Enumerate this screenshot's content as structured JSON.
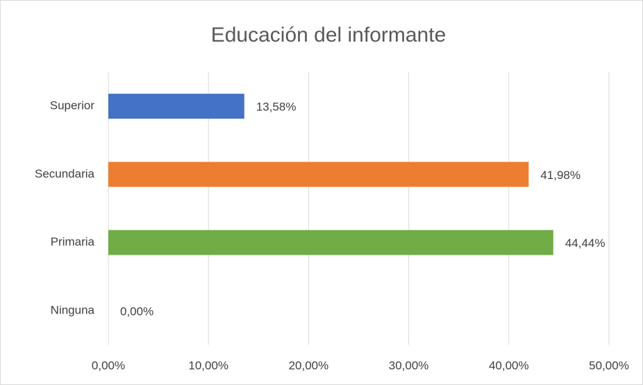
{
  "chart_data": {
    "type": "bar",
    "orientation": "horizontal",
    "title": "Educación del informante",
    "categories": [
      "Superior",
      "Secundaria",
      "Primaria",
      "Ninguna"
    ],
    "values": [
      13.58,
      41.98,
      44.44,
      0
    ],
    "value_labels": [
      "13,58%",
      "41,98%",
      "44,44%",
      "0,00%"
    ],
    "colors": [
      "#4472c4",
      "#ed7d31",
      "#70ad47",
      "#a5a5a5"
    ],
    "xlim": [
      0,
      50
    ],
    "xticks": [
      {
        "value": 0,
        "label": "0,00%"
      },
      {
        "value": 10,
        "label": "10,00%"
      },
      {
        "value": 20,
        "label": "20,00%"
      },
      {
        "value": 30,
        "label": "30,00%"
      },
      {
        "value": 40,
        "label": "40,00%"
      },
      {
        "value": 50,
        "label": "50,00%"
      }
    ],
    "grid": true
  }
}
